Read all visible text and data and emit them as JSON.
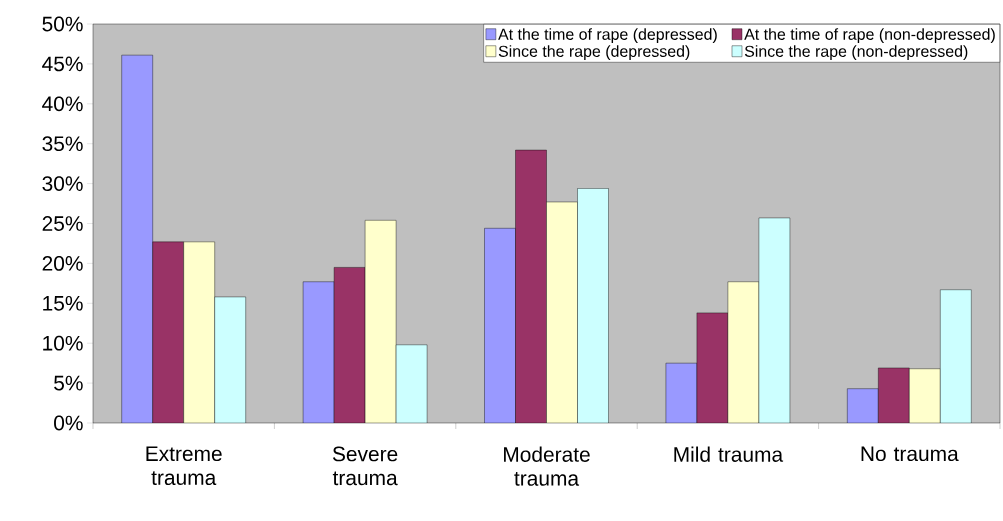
{
  "chart_data": {
    "type": "bar",
    "categories": [
      "Extreme trauma",
      "Severe trauma",
      "Moderate trauma",
      "Mild trauma",
      "No trauma"
    ],
    "series": [
      {
        "name": "At the time of rape (depressed)",
        "color": "#9999ff",
        "values": [
          46.1,
          17.7,
          24.4,
          7.5,
          4.3
        ]
      },
      {
        "name": "At the time of rape (non-depressed)",
        "color": "#993366",
        "values": [
          22.7,
          19.5,
          34.2,
          13.8,
          6.9
        ]
      },
      {
        "name": "Since the rape (depressed)",
        "color": "#ffffcc",
        "values": [
          22.7,
          25.4,
          27.7,
          17.7,
          6.8
        ]
      },
      {
        "name": "Since the rape (non-depressed)",
        "color": "#ccffff",
        "values": [
          15.8,
          9.8,
          29.4,
          25.7,
          16.7
        ]
      }
    ],
    "ylim": [
      0,
      50
    ],
    "yticks": [
      {
        "value": 0,
        "label": "0%"
      },
      {
        "value": 5,
        "label": "5%"
      },
      {
        "value": 10,
        "label": "10%"
      },
      {
        "value": 15,
        "label": "15%"
      },
      {
        "value": 20,
        "label": "20%"
      },
      {
        "value": 25,
        "label": "25%"
      },
      {
        "value": 30,
        "label": "30%"
      },
      {
        "value": 35,
        "label": "35%"
      },
      {
        "value": 40,
        "label": "40%"
      },
      {
        "value": 45,
        "label": "45%"
      },
      {
        "value": 50,
        "label": "50%"
      }
    ],
    "grid": false,
    "legend": "top right"
  }
}
